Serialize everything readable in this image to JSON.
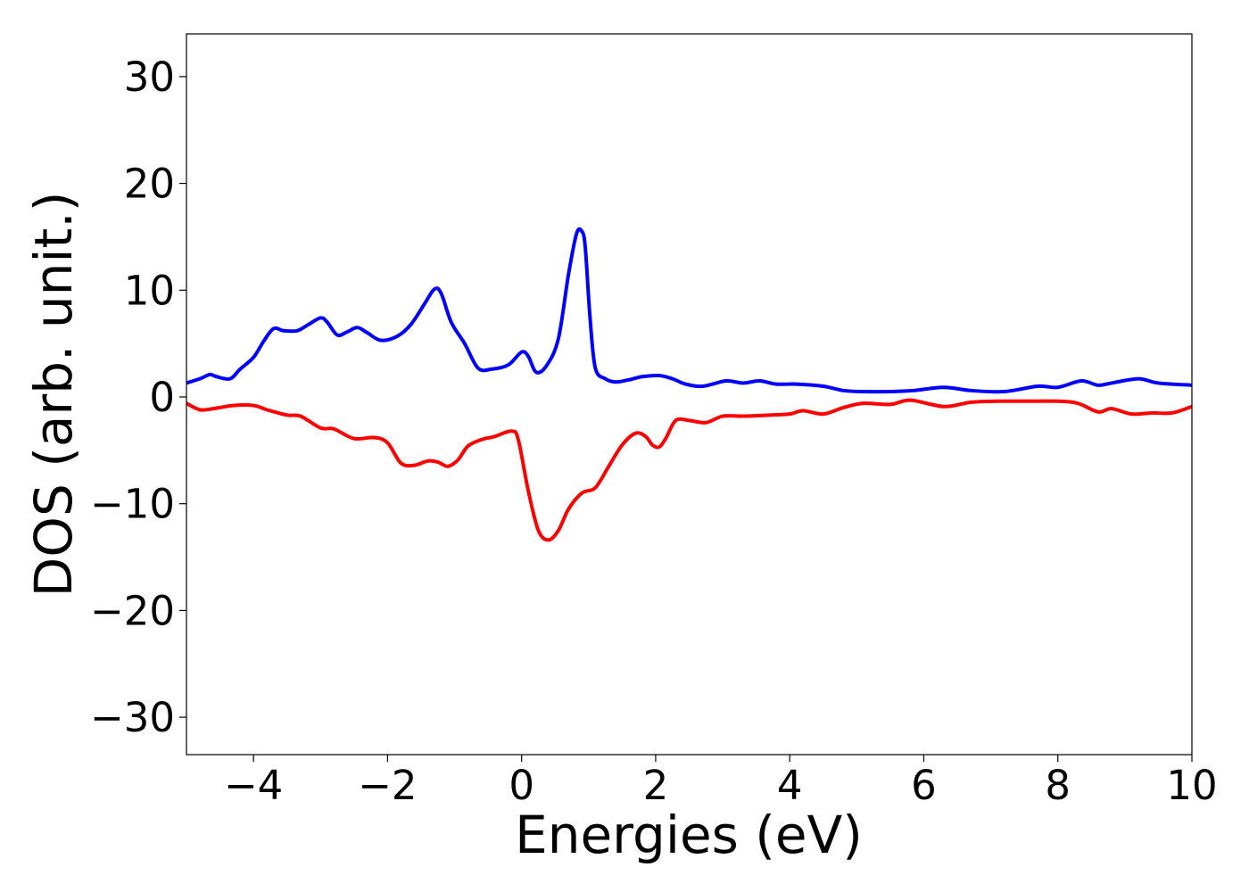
{
  "chart_data": {
    "type": "line",
    "xlabel": "Energies (eV)",
    "ylabel": "DOS (arb. unit.)",
    "xlim": [
      -5,
      10
    ],
    "ylim": [
      -33.5,
      34
    ],
    "xticks": [
      -4,
      -2,
      0,
      2,
      4,
      6,
      8,
      10
    ],
    "xtick_labels": [
      "−4",
      "−2",
      "0",
      "2",
      "4",
      "6",
      "8",
      "10"
    ],
    "yticks": [
      -30,
      -20,
      -10,
      0,
      10,
      20,
      30
    ],
    "ytick_labels": [
      "−30",
      "−20",
      "−10",
      "0",
      "10",
      "20",
      "30"
    ],
    "grid": false,
    "series": [
      {
        "color": "#0000ff",
        "x": [
          -5,
          -4.8,
          -4.65,
          -4.55,
          -4.35,
          -4.2,
          -4.0,
          -3.85,
          -3.7,
          -3.55,
          -3.35,
          -3.2,
          -3.0,
          -2.9,
          -2.75,
          -2.6,
          -2.45,
          -2.3,
          -2.1,
          -1.85,
          -1.65,
          -1.45,
          -1.3,
          -1.2,
          -1.05,
          -0.85,
          -0.65,
          -0.45,
          -0.2,
          0.0,
          0.1,
          0.22,
          0.38,
          0.55,
          0.7,
          0.82,
          0.9,
          0.95,
          1.02,
          1.1,
          1.25,
          1.4,
          1.6,
          1.8,
          2.05,
          2.25,
          2.45,
          2.7,
          3.05,
          3.3,
          3.55,
          3.8,
          4.1,
          4.5,
          4.8,
          5.1,
          5.5,
          5.85,
          6.3,
          6.7,
          7.2,
          7.7,
          8.0,
          8.35,
          8.6,
          8.8,
          9.2,
          9.5,
          10.0
        ],
        "values": [
          1.3,
          1.7,
          2.1,
          1.9,
          1.7,
          2.6,
          3.7,
          5.2,
          6.4,
          6.2,
          6.2,
          6.7,
          7.4,
          7.0,
          5.8,
          6.1,
          6.5,
          6.0,
          5.3,
          5.7,
          6.8,
          8.7,
          10.1,
          9.7,
          7.0,
          5.0,
          2.7,
          2.6,
          3.0,
          4.2,
          3.8,
          2.3,
          3.0,
          5.5,
          11.5,
          15.3,
          15.5,
          14.0,
          7.5,
          2.7,
          1.7,
          1.4,
          1.6,
          1.9,
          2.0,
          1.7,
          1.2,
          1.0,
          1.5,
          1.3,
          1.5,
          1.2,
          1.2,
          1.0,
          0.6,
          0.5,
          0.5,
          0.6,
          0.9,
          0.6,
          0.5,
          1.0,
          0.9,
          1.5,
          1.1,
          1.3,
          1.7,
          1.3,
          1.1
        ]
      },
      {
        "color": "#ff0000",
        "x": [
          -5,
          -4.8,
          -4.6,
          -4.3,
          -4.0,
          -3.8,
          -3.5,
          -3.3,
          -3.0,
          -2.8,
          -2.5,
          -2.2,
          -2.0,
          -1.8,
          -1.6,
          -1.4,
          -1.25,
          -1.1,
          -0.95,
          -0.8,
          -0.6,
          -0.4,
          -0.15,
          -0.05,
          0.1,
          0.25,
          0.4,
          0.55,
          0.7,
          0.9,
          1.1,
          1.3,
          1.5,
          1.7,
          1.85,
          1.95,
          2.05,
          2.15,
          2.3,
          2.5,
          2.75,
          3.0,
          3.3,
          3.7,
          4.0,
          4.2,
          4.5,
          4.8,
          5.1,
          5.5,
          5.8,
          6.3,
          6.7,
          7.1,
          7.5,
          8.0,
          8.3,
          8.6,
          8.8,
          9.1,
          9.4,
          9.7,
          10.0
        ],
        "values": [
          -0.6,
          -1.2,
          -1.1,
          -0.8,
          -0.8,
          -1.2,
          -1.7,
          -1.8,
          -2.9,
          -3.0,
          -3.9,
          -3.8,
          -4.3,
          -6.2,
          -6.4,
          -6.0,
          -6.1,
          -6.5,
          -5.9,
          -4.6,
          -4.0,
          -3.7,
          -3.2,
          -4.0,
          -8.8,
          -12.5,
          -13.4,
          -12.5,
          -10.5,
          -9.0,
          -8.5,
          -6.5,
          -4.5,
          -3.4,
          -3.7,
          -4.5,
          -4.7,
          -3.9,
          -2.2,
          -2.2,
          -2.4,
          -1.8,
          -1.8,
          -1.7,
          -1.6,
          -1.3,
          -1.6,
          -1.0,
          -0.6,
          -0.7,
          -0.3,
          -0.9,
          -0.5,
          -0.4,
          -0.4,
          -0.4,
          -0.6,
          -1.4,
          -1.1,
          -1.6,
          -1.5,
          -1.5,
          -0.9
        ]
      }
    ]
  }
}
